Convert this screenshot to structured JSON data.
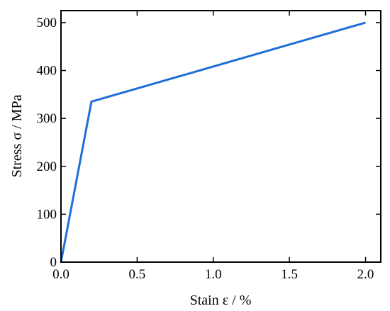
{
  "chart_data": {
    "type": "line",
    "title": "",
    "xlabel": "Stain ε / %",
    "ylabel": "Stress σ / MPa",
    "xlim": [
      0,
      2.1
    ],
    "ylim": [
      0,
      525
    ],
    "xticks": [
      0.0,
      0.5,
      1.0,
      1.5,
      2.0
    ],
    "xtick_labels": [
      "0.0",
      "0.5",
      "1.0",
      "1.5",
      "2.0"
    ],
    "yticks": [
      0,
      100,
      200,
      300,
      400,
      500
    ],
    "ytick_labels": [
      "0",
      "100",
      "200",
      "300",
      "400",
      "500"
    ],
    "grid": false,
    "legend": "none",
    "series": [
      {
        "color": "#1f6fd6",
        "x": [
          0.0,
          0.2,
          2.0
        ],
        "y": [
          0,
          335,
          500
        ]
      }
    ]
  }
}
